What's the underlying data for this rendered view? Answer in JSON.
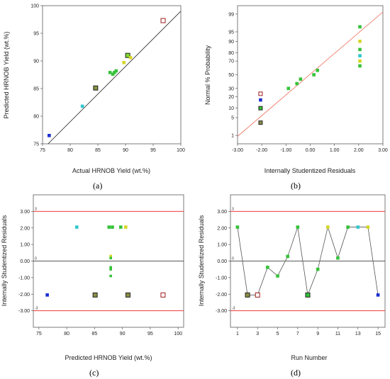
{
  "colors": {
    "red": "#9c1b1b",
    "blue": "#1c2fd0",
    "cyan": "#32c6d0",
    "green": "#36c23a",
    "yellow": "#d6d629",
    "olive": "#8a8e45",
    "lime": "#7edc2d",
    "limit_line": "#ef3b3b",
    "fit_line": "#f07b6b"
  },
  "chart_data": [
    {
      "panel": "(a)",
      "type": "scatter",
      "xlabel": "Actual HRNOB Yield (wt.%)",
      "ylabel": "Predicted HRNOB Yield (wt.%)",
      "xlim": [
        75,
        100
      ],
      "ylim": [
        75,
        100
      ],
      "xticks": [
        75,
        80,
        85,
        90,
        95,
        100
      ],
      "yticks": [
        75,
        80,
        85,
        90,
        95,
        100
      ],
      "xtick_labels": [
        "75",
        "80",
        "85",
        "90",
        "95",
        "100"
      ],
      "ytick_labels": [
        "75",
        "80",
        "85",
        "90",
        "95",
        "100"
      ],
      "reference_line": [
        [
          76,
          75
        ],
        [
          100,
          99
        ]
      ],
      "points": [
        {
          "x": 76.2,
          "y": 76.5,
          "color": "blue",
          "edge": "blue",
          "size": 4
        },
        {
          "x": 82.2,
          "y": 81.8,
          "color": "cyan",
          "edge": "cyan",
          "size": 4
        },
        {
          "x": 84.6,
          "y": 85.1,
          "color": "olive",
          "edge": "#222",
          "size": 6
        },
        {
          "x": 87.2,
          "y": 87.9,
          "color": "green",
          "edge": "green",
          "size": 4
        },
        {
          "x": 87.7,
          "y": 87.6,
          "color": "green",
          "edge": "green",
          "size": 4
        },
        {
          "x": 88.0,
          "y": 87.9,
          "color": "green",
          "edge": "green",
          "size": 4
        },
        {
          "x": 88.3,
          "y": 88.2,
          "color": "green",
          "edge": "green",
          "size": 4
        },
        {
          "x": 89.7,
          "y": 89.7,
          "color": "yellow",
          "edge": "yellow",
          "size": 4
        },
        {
          "x": 90.4,
          "y": 91.0,
          "color": "lime",
          "edge": "#222",
          "size": 6
        },
        {
          "x": 90.9,
          "y": 90.6,
          "color": "yellow",
          "edge": "yellow",
          "size": 4
        },
        {
          "x": 96.8,
          "y": 97.3,
          "color": "#ffffff",
          "edge": "red",
          "size": 6
        }
      ]
    },
    {
      "panel": "(b)",
      "type": "scatter",
      "xlabel": "Internally Studentized Residuals",
      "ylabel": "Normal % Probability",
      "xlim": [
        -3,
        3
      ],
      "xticks": [
        -3,
        -2,
        -1,
        0,
        1,
        2,
        3
      ],
      "xtick_labels": [
        "-3.00",
        "-2.00",
        "-1.00",
        "0.00",
        "1.00",
        "2.00",
        "3.00"
      ],
      "ylim": [
        0,
        100
      ],
      "yticks": [
        1,
        5,
        10,
        20,
        30,
        50,
        70,
        80,
        90,
        95,
        99
      ],
      "ytick_labels": [
        "1",
        "5",
        "10",
        "20",
        "30",
        "50",
        "70",
        "80",
        "90",
        "95",
        "99"
      ],
      "fit_line": [
        [
          -3.2,
          0.9
        ],
        [
          3.2,
          99.2
        ]
      ],
      "points": [
        {
          "x": -2.05,
          "y": 3.3,
          "color": "olive",
          "edge": "#222",
          "size": 5
        },
        {
          "x": -2.05,
          "y": 10.0,
          "color": "green",
          "edge": "#222",
          "size": 5
        },
        {
          "x": -2.05,
          "y": 16.7,
          "color": "blue",
          "edge": "blue",
          "size": 4
        },
        {
          "x": -2.05,
          "y": 23.3,
          "color": "#ffffff",
          "edge": "red",
          "size": 5
        },
        {
          "x": -0.9,
          "y": 30.0,
          "color": "green",
          "edge": "green",
          "size": 4
        },
        {
          "x": -0.55,
          "y": 36.7,
          "color": "green",
          "edge": "green",
          "size": 4
        },
        {
          "x": -0.4,
          "y": 43.3,
          "color": "green",
          "edge": "green",
          "size": 4
        },
        {
          "x": 0.15,
          "y": 50.0,
          "color": "green",
          "edge": "green",
          "size": 4
        },
        {
          "x": 0.3,
          "y": 56.7,
          "color": "green",
          "edge": "green",
          "size": 4
        },
        {
          "x": 2.05,
          "y": 63.3,
          "color": "green",
          "edge": "green",
          "size": 4
        },
        {
          "x": 2.05,
          "y": 70.0,
          "color": "yellow",
          "edge": "yellow",
          "size": 4
        },
        {
          "x": 2.05,
          "y": 76.7,
          "color": "cyan",
          "edge": "cyan",
          "size": 4
        },
        {
          "x": 2.05,
          "y": 83.3,
          "color": "green",
          "edge": "green",
          "size": 4
        },
        {
          "x": 2.05,
          "y": 90.0,
          "color": "yellow",
          "edge": "yellow",
          "size": 4
        },
        {
          "x": 2.05,
          "y": 96.7,
          "color": "green",
          "edge": "green",
          "size": 4
        }
      ]
    },
    {
      "panel": "(c)",
      "type": "scatter",
      "xlabel": "Predicted HRNOB Yield (wt.%)",
      "ylabel": "Internally Studentized Residuals",
      "xlim": [
        74,
        101
      ],
      "ylim": [
        -4,
        4
      ],
      "xticks": [
        75,
        80,
        85,
        90,
        95,
        100
      ],
      "xtick_labels": [
        "75",
        "80",
        "85",
        "90",
        "95",
        "100"
      ],
      "yticks": [
        -3,
        -2,
        -1,
        0,
        1,
        2,
        3
      ],
      "ytick_labels": [
        "-3.00",
        "-2.00",
        "-1.00",
        "0.00",
        "1.00",
        "2.00",
        "3.00"
      ],
      "limit_lines": [
        3.0,
        -3.0
      ],
      "limit_labels": [
        "3",
        "-3"
      ],
      "zero_label": "0",
      "points": [
        {
          "x": 76.5,
          "y": -2.05,
          "color": "blue",
          "edge": "blue",
          "size": 4
        },
        {
          "x": 81.8,
          "y": 2.05,
          "color": "cyan",
          "edge": "cyan",
          "size": 4
        },
        {
          "x": 85.1,
          "y": -2.05,
          "color": "olive",
          "edge": "#222",
          "size": 6
        },
        {
          "x": 87.6,
          "y": 2.05,
          "color": "green",
          "edge": "green",
          "size": 4
        },
        {
          "x": 87.9,
          "y": 0.3,
          "color": "yellow",
          "edge": "yellow",
          "size": 3
        },
        {
          "x": 87.9,
          "y": 0.18,
          "color": "green",
          "edge": "green",
          "size": 3
        },
        {
          "x": 87.9,
          "y": -0.38,
          "color": "green",
          "edge": "green",
          "size": 3
        },
        {
          "x": 87.9,
          "y": -0.5,
          "color": "green",
          "edge": "green",
          "size": 3
        },
        {
          "x": 87.9,
          "y": -0.9,
          "color": "green",
          "edge": "green",
          "size": 3
        },
        {
          "x": 88.2,
          "y": 2.05,
          "color": "green",
          "edge": "green",
          "size": 4
        },
        {
          "x": 89.7,
          "y": 2.05,
          "color": "green",
          "edge": "green",
          "size": 4
        },
        {
          "x": 90.6,
          "y": 2.05,
          "color": "yellow",
          "edge": "yellow",
          "size": 4
        },
        {
          "x": 91.0,
          "y": -2.05,
          "color": "olive",
          "edge": "#222",
          "size": 6
        },
        {
          "x": 97.3,
          "y": -2.05,
          "color": "#ffffff",
          "edge": "red",
          "size": 6
        }
      ]
    },
    {
      "panel": "(d)",
      "type": "line",
      "xlabel": "Run Number",
      "ylabel": "Internally Studentized Residuals",
      "xlim": [
        0.3,
        15.7
      ],
      "ylim": [
        -4,
        4
      ],
      "xticks": [
        1,
        3,
        5,
        7,
        9,
        11,
        13,
        15
      ],
      "xtick_labels": [
        "1",
        "3",
        "5",
        "7",
        "9",
        "11",
        "13",
        "15"
      ],
      "yticks": [
        -3,
        -2,
        -1,
        0,
        1,
        2,
        3
      ],
      "ytick_labels": [
        "-3.00",
        "-2.00",
        "-1.00",
        "0.00",
        "1.00",
        "2.00",
        "3.00"
      ],
      "limit_lines": [
        3.0,
        -3.0
      ],
      "limit_labels": [
        "3",
        "-3"
      ],
      "zero_label": "0",
      "points": [
        {
          "x": 1,
          "y": 2.05,
          "color": "green",
          "edge": "green",
          "size": 4
        },
        {
          "x": 2,
          "y": -2.05,
          "color": "olive",
          "edge": "#222",
          "size": 6
        },
        {
          "x": 3,
          "y": -2.05,
          "color": "#ffffff",
          "edge": "red",
          "size": 6
        },
        {
          "x": 4,
          "y": -0.38,
          "color": "green",
          "edge": "green",
          "size": 4
        },
        {
          "x": 5,
          "y": -0.9,
          "color": "green",
          "edge": "green",
          "size": 4
        },
        {
          "x": 6,
          "y": 0.28,
          "color": "green",
          "edge": "green",
          "size": 4
        },
        {
          "x": 7,
          "y": 2.05,
          "color": "green",
          "edge": "green",
          "size": 4
        },
        {
          "x": 8,
          "y": -2.05,
          "color": "green",
          "edge": "#222",
          "size": 6
        },
        {
          "x": 9,
          "y": -0.5,
          "color": "green",
          "edge": "green",
          "size": 4
        },
        {
          "x": 10,
          "y": 2.05,
          "color": "yellow",
          "edge": "yellow",
          "size": 4
        },
        {
          "x": 11,
          "y": 0.18,
          "color": "green",
          "edge": "green",
          "size": 4
        },
        {
          "x": 12,
          "y": 2.05,
          "color": "green",
          "edge": "green",
          "size": 4
        },
        {
          "x": 13,
          "y": 2.05,
          "color": "cyan",
          "edge": "cyan",
          "size": 4
        },
        {
          "x": 14,
          "y": 2.05,
          "color": "yellow",
          "edge": "yellow",
          "size": 4
        },
        {
          "x": 15,
          "y": -2.05,
          "color": "blue",
          "edge": "blue",
          "size": 4
        }
      ]
    }
  ]
}
